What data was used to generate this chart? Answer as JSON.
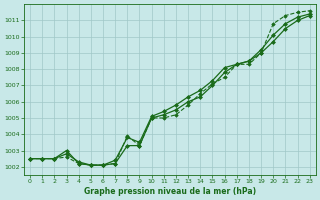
{
  "title": "Graphe pression niveau de la mer (hPa)",
  "bg_color": "#c8e8e8",
  "grid_color": "#a0c8c8",
  "line_color": "#1a6b1a",
  "xlim": [
    -0.5,
    23.5
  ],
  "ylim": [
    1001.5,
    1012.0
  ],
  "yticks": [
    1002,
    1003,
    1004,
    1005,
    1006,
    1007,
    1008,
    1009,
    1010,
    1011
  ],
  "xticks": [
    0,
    1,
    2,
    3,
    4,
    5,
    6,
    7,
    8,
    9,
    10,
    11,
    12,
    13,
    14,
    15,
    16,
    17,
    18,
    19,
    20,
    21,
    22,
    23
  ],
  "series": [
    {
      "data": [
        1002.5,
        1002.5,
        1002.5,
        1003.0,
        1002.2,
        1002.1,
        1002.1,
        1002.2,
        1003.3,
        1003.3,
        1005.0,
        1005.2,
        1005.5,
        1006.0,
        1006.3,
        1007.0,
        1007.8,
        1008.3,
        1008.5,
        1009.0,
        1009.7,
        1010.5,
        1011.0,
        1011.3
      ],
      "linestyle": "-",
      "linewidth": 0.9,
      "marker": "D",
      "markersize": 2.0
    },
    {
      "data": [
        1002.5,
        1002.5,
        1002.5,
        1002.8,
        1002.3,
        1002.1,
        1002.1,
        1002.4,
        1003.8,
        1003.5,
        1005.1,
        1005.4,
        1005.8,
        1006.3,
        1006.7,
        1007.3,
        1008.1,
        1008.3,
        1008.5,
        1009.2,
        1010.1,
        1010.8,
        1011.2,
        1011.4
      ],
      "linestyle": "-",
      "linewidth": 0.9,
      "marker": "D",
      "markersize": 2.0
    },
    {
      "data": [
        1002.5,
        1002.5,
        1002.5,
        1002.6,
        1002.2,
        1002.1,
        1002.1,
        1002.2,
        1003.9,
        1003.3,
        1005.0,
        1005.0,
        1005.2,
        1005.8,
        1006.5,
        1007.1,
        1007.5,
        1008.3,
        1008.3,
        1009.0,
        1010.8,
        1011.3,
        1011.5,
        1011.6
      ],
      "linestyle": "--",
      "linewidth": 0.8,
      "marker": "D",
      "markersize": 1.8
    }
  ]
}
